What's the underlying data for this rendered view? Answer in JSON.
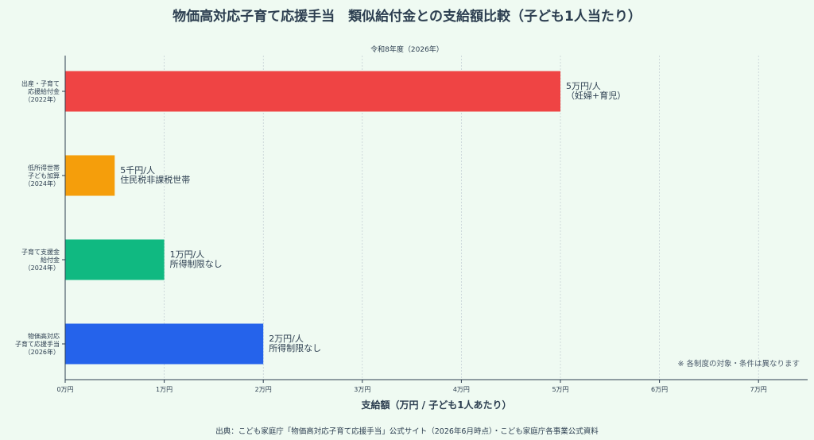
{
  "title": "物価高対応子育て応援手当　類似給付金との支給額比較（子ども1人当たり）",
  "subtitle": "令和8年度（2026年）",
  "source": "出典：こども家庭庁「物価高対応子育て応援手当」公式サイト（2026年6月時点）・こども家庭庁各事業公式資料",
  "note": "※ 各制度の対象・条件は異なります",
  "chart_data": {
    "type": "bar",
    "orientation": "horizontal",
    "xlabel": "支給額（万円 / 子ども1人あたり）",
    "xlim": [
      0,
      7.5
    ],
    "xticks": [
      {
        "value": 0,
        "label": "0万円"
      },
      {
        "value": 1,
        "label": "1万円"
      },
      {
        "value": 2,
        "label": "2万円"
      },
      {
        "value": 3,
        "label": "3万円"
      },
      {
        "value": 4,
        "label": "4万円"
      },
      {
        "value": 5,
        "label": "5万円"
      },
      {
        "value": 6,
        "label": "6万円"
      },
      {
        "value": 7,
        "label": "7万円"
      }
    ],
    "grid": true,
    "bars": [
      {
        "category": [
          "出産・子育て",
          "応援給付金",
          "（2022年）"
        ],
        "value": 5,
        "color": "#ef4444",
        "label": [
          "5万円/人",
          "（妊婦+育児）"
        ]
      },
      {
        "category": [
          "低所得世帯",
          "子ども加算",
          "（2024年）"
        ],
        "value": 0.5,
        "color": "#f59e0b",
        "label": [
          "5千円/人",
          "住民税非課税世帯"
        ]
      },
      {
        "category": [
          "子育て支援金",
          "給付金",
          "（2024年）"
        ],
        "value": 1,
        "color": "#10b981",
        "label": [
          "1万円/人",
          "所得制限なし"
        ]
      },
      {
        "category": [
          "物価高対応",
          "子育て応援手当",
          "（2026年）"
        ],
        "value": 2,
        "color": "#2563eb",
        "label": [
          "2万円/人",
          "所得制限なし"
        ]
      }
    ]
  }
}
